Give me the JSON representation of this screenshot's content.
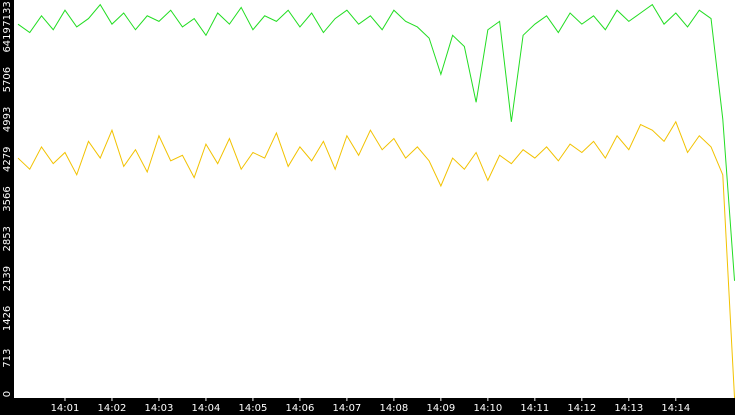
{
  "chart_data": {
    "type": "line",
    "x": [
      840,
      840.25,
      840.5,
      840.75,
      841,
      841.25,
      841.5,
      841.75,
      842,
      842.25,
      842.5,
      842.75,
      843,
      843.25,
      843.5,
      843.75,
      844,
      844.25,
      844.5,
      844.75,
      845,
      845.25,
      845.5,
      845.75,
      846,
      846.25,
      846.5,
      846.75,
      847,
      847.25,
      847.5,
      847.75,
      848,
      848.25,
      848.5,
      848.75,
      849,
      849.25,
      849.5,
      849.75,
      850,
      850.25,
      850.5,
      850.75,
      851,
      851.25,
      851.5,
      851.75,
      852,
      852.25,
      852.5,
      852.75,
      853,
      853.25,
      853.5,
      853.75,
      854,
      854.25,
      854.5,
      854.75,
      855,
      855.25
    ],
    "series": [
      {
        "color": "#22dd22",
        "values": [
          6700,
          6550,
          6850,
          6600,
          6950,
          6650,
          6800,
          7050,
          6700,
          6900,
          6600,
          6850,
          6750,
          6950,
          6650,
          6800,
          6500,
          6900,
          6700,
          7000,
          6600,
          6850,
          6750,
          6950,
          6650,
          6900,
          6550,
          6800,
          6950,
          6700,
          6850,
          6600,
          6950,
          6750,
          6650,
          6450,
          5800,
          6500,
          6300,
          5300,
          6600,
          6750,
          4950,
          6500,
          6700,
          6850,
          6550,
          6900,
          6700,
          6850,
          6600,
          6950,
          6750,
          6900,
          7050,
          6700,
          6900,
          6650,
          6950,
          6800,
          5000,
          2100
        ]
      },
      {
        "color": "#f2c200",
        "values": [
          4300,
          4100,
          4500,
          4200,
          4400,
          4000,
          4600,
          4300,
          4800,
          4150,
          4450,
          4050,
          4700,
          4250,
          4350,
          3950,
          4550,
          4200,
          4650,
          4100,
          4400,
          4300,
          4750,
          4150,
          4500,
          4250,
          4600,
          4100,
          4700,
          4350,
          4800,
          4450,
          4650,
          4300,
          4500,
          4250,
          3800,
          4300,
          4100,
          4400,
          3900,
          4350,
          4200,
          4450,
          4300,
          4500,
          4250,
          4550,
          4400,
          4600,
          4300,
          4700,
          4450,
          4900,
          4800,
          4600,
          4950,
          4400,
          4700,
          4500,
          4000,
          0
        ]
      }
    ],
    "xlim": [
      839.915,
      855.26
    ],
    "xticks": [
      {
        "value": 841,
        "label": "14:01"
      },
      {
        "value": 842,
        "label": "14:02"
      },
      {
        "value": 843,
        "label": "14:03"
      },
      {
        "value": 844,
        "label": "14:04"
      },
      {
        "value": 845,
        "label": "14:05"
      },
      {
        "value": 846,
        "label": "14:06"
      },
      {
        "value": 847,
        "label": "14:07"
      },
      {
        "value": 848,
        "label": "14:08"
      },
      {
        "value": 849,
        "label": "14:09"
      },
      {
        "value": 850,
        "label": "14:10"
      },
      {
        "value": 851,
        "label": "14:11"
      },
      {
        "value": 852,
        "label": "14:12"
      },
      {
        "value": 853,
        "label": "14:13"
      },
      {
        "value": 854,
        "label": "14:14"
      }
    ],
    "ylim": [
      0,
      7133
    ],
    "yticks": [
      0,
      713,
      1426,
      2139,
      2853,
      3566,
      4279,
      4993,
      5706,
      6419,
      7133
    ]
  }
}
